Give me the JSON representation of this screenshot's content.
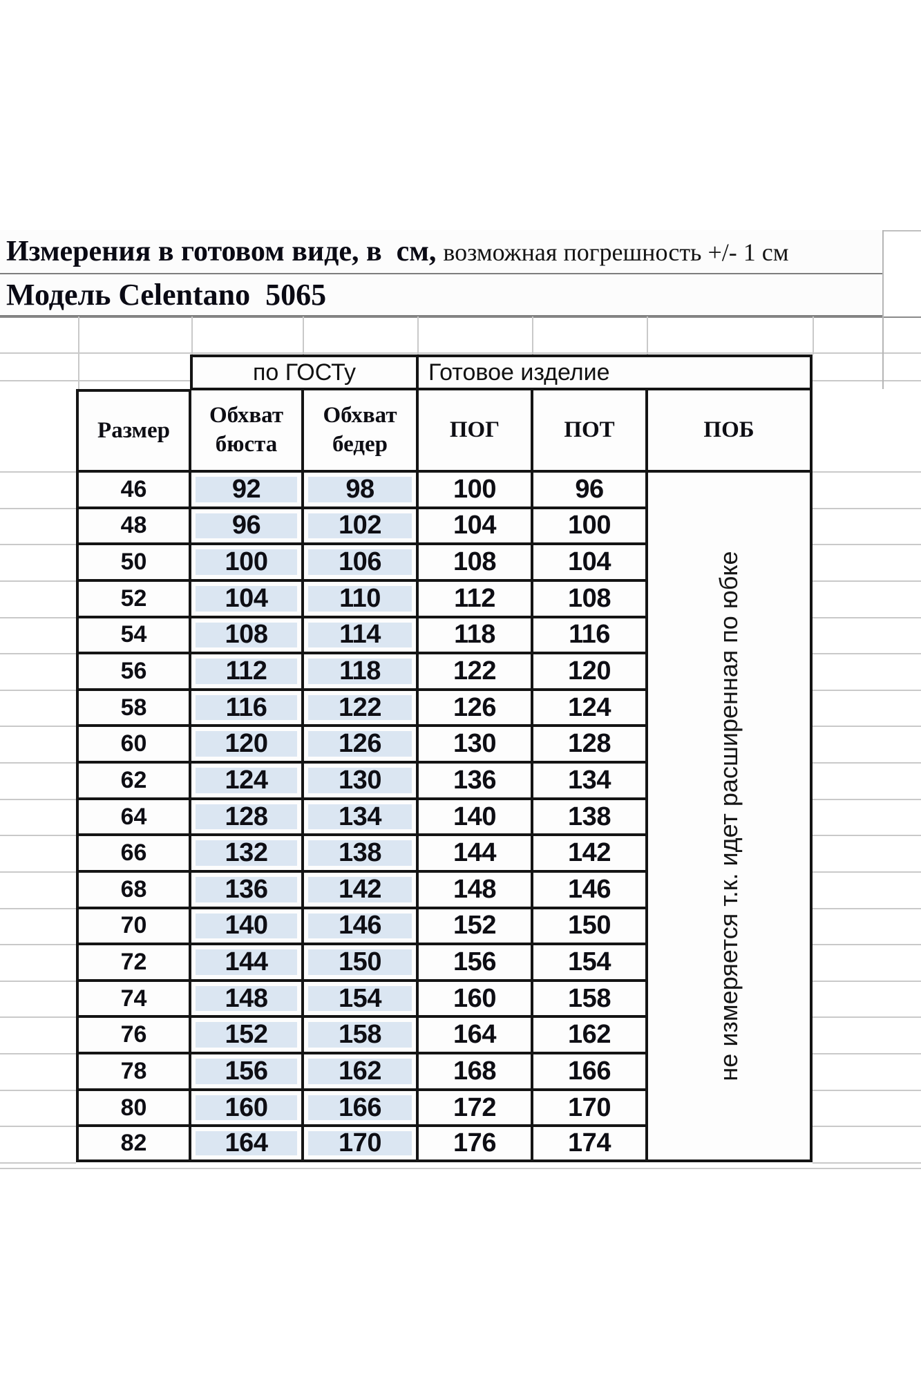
{
  "title": {
    "bold": "Измерения в готовом виде, в  см,",
    "regular": "возможная погрешность +/- 1 см"
  },
  "model_label": "Модель Celentano  5065",
  "table": {
    "group_headers": [
      {
        "label": "по ГОСТу"
      },
      {
        "label": "Готовое изделие"
      }
    ],
    "columns": [
      "Размер",
      "Обхват бюста",
      "Обхват бедер",
      "ПОГ",
      "ПОТ",
      "ПОБ"
    ],
    "note_vertical": "не измеряется т.к. идет расширенная по юбке",
    "rows": [
      {
        "size": "46",
        "bust": "92",
        "hips": "98",
        "pog": "100",
        "pot": "96"
      },
      {
        "size": "48",
        "bust": "96",
        "hips": "102",
        "pog": "104",
        "pot": "100"
      },
      {
        "size": "50",
        "bust": "100",
        "hips": "106",
        "pog": "108",
        "pot": "104"
      },
      {
        "size": "52",
        "bust": "104",
        "hips": "110",
        "pog": "112",
        "pot": "108"
      },
      {
        "size": "54",
        "bust": "108",
        "hips": "114",
        "pog": "118",
        "pot": "116"
      },
      {
        "size": "56",
        "bust": "112",
        "hips": "118",
        "pog": "122",
        "pot": "120"
      },
      {
        "size": "58",
        "bust": "116",
        "hips": "122",
        "pog": "126",
        "pot": "124"
      },
      {
        "size": "60",
        "bust": "120",
        "hips": "126",
        "pog": "130",
        "pot": "128"
      },
      {
        "size": "62",
        "bust": "124",
        "hips": "130",
        "pog": "136",
        "pot": "134"
      },
      {
        "size": "64",
        "bust": "128",
        "hips": "134",
        "pog": "140",
        "pot": "138"
      },
      {
        "size": "66",
        "bust": "132",
        "hips": "138",
        "pog": "144",
        "pot": "142"
      },
      {
        "size": "68",
        "bust": "136",
        "hips": "142",
        "pog": "148",
        "pot": "146"
      },
      {
        "size": "70",
        "bust": "140",
        "hips": "146",
        "pog": "152",
        "pot": "150"
      },
      {
        "size": "72",
        "bust": "144",
        "hips": "150",
        "pog": "156",
        "pot": "154"
      },
      {
        "size": "74",
        "bust": "148",
        "hips": "154",
        "pog": "160",
        "pot": "158"
      },
      {
        "size": "76",
        "bust": "152",
        "hips": "158",
        "pog": "164",
        "pot": "162"
      },
      {
        "size": "78",
        "bust": "156",
        "hips": "162",
        "pog": "168",
        "pot": "166"
      },
      {
        "size": "80",
        "bust": "160",
        "hips": "166",
        "pog": "172",
        "pot": "170"
      },
      {
        "size": "82",
        "bust": "164",
        "hips": "170",
        "pog": "176",
        "pot": "174"
      }
    ]
  },
  "colors": {
    "highlight_fill": "#dbe6f2",
    "table_border": "#141414",
    "gridline": "#c9c9c9"
  }
}
